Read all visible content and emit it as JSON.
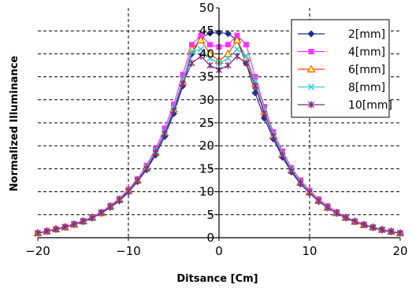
{
  "chart_data": {
    "type": "line",
    "xlabel": "Ditsance [Cm]",
    "ylabel": "Normalized Illuminance",
    "xlim": [
      -20,
      20
    ],
    "ylim": [
      0,
      50
    ],
    "x_ticks": [
      -20,
      -10,
      0,
      10,
      20
    ],
    "x_tick_labels": [
      "−20",
      "−10",
      "0",
      "10",
      "20"
    ],
    "y_ticks": [
      0,
      5,
      10,
      15,
      20,
      25,
      30,
      35,
      40,
      45,
      50
    ],
    "grid": true,
    "legend_position": "top-right",
    "x": [
      -20,
      -19,
      -18,
      -17,
      -16,
      -15,
      -14,
      -13,
      -12,
      -11,
      -10,
      -9,
      -8,
      -7,
      -6,
      -5,
      -4,
      -3,
      -2,
      -1,
      0,
      1,
      2,
      3,
      4,
      5,
      6,
      7,
      8,
      9,
      10,
      11,
      12,
      13,
      14,
      15,
      16,
      17,
      18,
      19,
      20
    ],
    "series": [
      {
        "name": "2[mm]",
        "color": "#1f2f8f",
        "marker": "diamond",
        "values": [
          1.0,
          1.4,
          1.8,
          2.3,
          2.9,
          3.5,
          4.3,
          5.3,
          6.6,
          8.0,
          9.9,
          12.2,
          14.8,
          18.0,
          22.0,
          27.0,
          33.0,
          40.0,
          43.5,
          44.5,
          44.6,
          44.4,
          43.0,
          38.0,
          31.5,
          26.0,
          21.5,
          17.5,
          14.3,
          11.7,
          9.7,
          7.9,
          6.5,
          5.3,
          4.3,
          3.5,
          2.8,
          2.2,
          1.7,
          1.3,
          1.0
        ]
      },
      {
        "name": "4[mm]",
        "color": "#ff33ff",
        "marker": "square",
        "values": [
          1.0,
          1.5,
          1.9,
          2.4,
          3.0,
          3.7,
          4.5,
          5.6,
          7.0,
          8.5,
          10.5,
          12.8,
          15.7,
          19.3,
          23.8,
          29.0,
          35.5,
          42.0,
          44.0,
          42.0,
          41.5,
          42.0,
          44.0,
          42.0,
          35.0,
          28.5,
          23.0,
          18.8,
          15.2,
          12.5,
          10.3,
          8.4,
          6.9,
          5.6,
          4.5,
          3.6,
          2.9,
          2.3,
          1.8,
          1.4,
          1.0
        ]
      },
      {
        "name": "6[mm]",
        "color": "#ff4400",
        "marker": "triangle",
        "values": [
          1.0,
          1.4,
          1.9,
          2.3,
          2.9,
          3.6,
          4.4,
          5.4,
          6.8,
          8.3,
          10.2,
          12.5,
          15.2,
          18.6,
          22.8,
          28.0,
          34.0,
          41.0,
          43.0,
          40.0,
          38.5,
          40.0,
          43.0,
          39.0,
          33.5,
          27.5,
          22.2,
          18.1,
          14.7,
          12.0,
          9.9,
          8.1,
          6.6,
          5.4,
          4.4,
          3.5,
          2.8,
          2.3,
          1.8,
          1.4,
          1.0
        ]
      },
      {
        "name": "8[mm]",
        "color": "#33ccdd",
        "marker": "x",
        "values": [
          1.0,
          1.4,
          1.8,
          2.3,
          2.9,
          3.6,
          4.4,
          5.5,
          6.8,
          8.3,
          10.2,
          12.5,
          15.3,
          18.8,
          23.0,
          28.2,
          34.3,
          40.5,
          41.0,
          39.0,
          38.0,
          39.0,
          41.0,
          39.5,
          34.0,
          27.8,
          22.5,
          18.3,
          14.8,
          12.1,
          9.9,
          8.1,
          6.6,
          5.4,
          4.4,
          3.5,
          2.8,
          2.3,
          1.8,
          1.4,
          1.0
        ]
      },
      {
        "name": "10[mm]",
        "color": "#7f2a80",
        "marker": "star",
        "values": [
          1.0,
          1.4,
          1.8,
          2.3,
          2.9,
          3.5,
          4.3,
          5.4,
          6.7,
          8.2,
          10.1,
          12.4,
          15.0,
          18.5,
          22.6,
          27.6,
          33.5,
          38.0,
          39.5,
          37.5,
          36.5,
          37.5,
          39.5,
          38.0,
          33.0,
          27.0,
          22.0,
          17.9,
          14.5,
          11.9,
          9.8,
          8.0,
          6.5,
          5.3,
          4.3,
          3.5,
          2.8,
          2.2,
          1.7,
          1.3,
          1.0
        ]
      }
    ]
  }
}
